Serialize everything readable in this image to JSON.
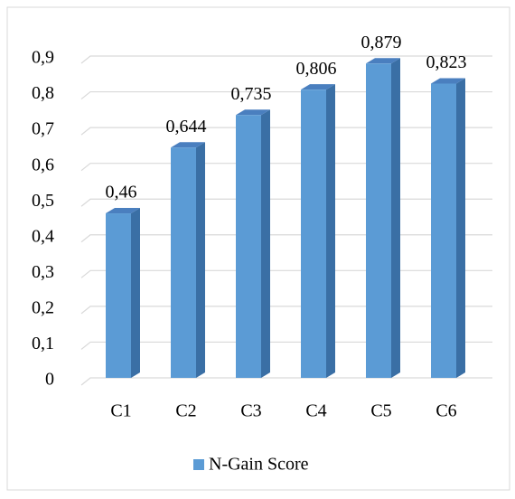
{
  "chart_data": {
    "type": "bar3d",
    "categories": [
      "C1",
      "C2",
      "C3",
      "C4",
      "C5",
      "C6"
    ],
    "series": [
      {
        "name": "N-Gain Score",
        "color": "#5b9bd5",
        "values": [
          0.46,
          0.644,
          0.735,
          0.806,
          0.879,
          0.823
        ],
        "value_labels": [
          "0,46",
          "0,644",
          "0,735",
          "0,806",
          "0,879",
          "0,823"
        ]
      }
    ],
    "ylim": [
      0,
      0.9
    ],
    "yticks": [
      0,
      {
        "value": 0.1,
        "label": "0,1"
      },
      {
        "value": 0.2,
        "label": "0,2"
      },
      {
        "value": 0.3,
        "label": "0,3"
      },
      {
        "value": 0.4,
        "label": "0,4"
      },
      {
        "value": 0.5,
        "label": "0,5"
      },
      {
        "value": 0.6,
        "label": "0,6"
      },
      {
        "value": 0.7,
        "label": "0,7"
      },
      {
        "value": 0.8,
        "label": "0,8"
      },
      {
        "value": 0.9,
        "label": "0,9"
      }
    ],
    "grid": true,
    "legend": "bottom"
  }
}
